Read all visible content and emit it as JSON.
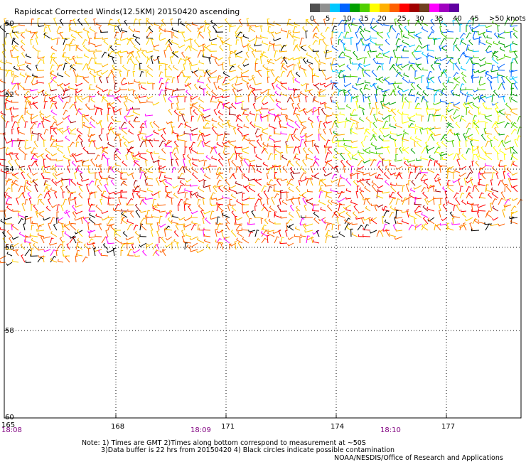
{
  "title": "Rapidscat Corrected Winds(12.5KM) 20150420 ascending",
  "legend": {
    "labels": [
      "0",
      "5",
      "10",
      "15",
      "20",
      "25",
      "30",
      "35",
      "40",
      "45",
      ">50 knots"
    ],
    "colors": [
      "#505050",
      "#909090",
      "#00c8ff",
      "#0064ff",
      "#00a000",
      "#50d000",
      "#ffff00",
      "#ffb000",
      "#ff6000",
      "#ff0000",
      "#a00000",
      "#704020",
      "#ff00ff",
      "#a000c0",
      "#6000a0"
    ]
  },
  "lat_labels": [
    "50",
    "52",
    "54",
    "56",
    "58",
    "60"
  ],
  "lon_labels": [
    "165",
    "168",
    "171",
    "174",
    "177"
  ],
  "time_labels": [
    "18:08",
    "18:09",
    "18:10"
  ],
  "notes": {
    "line1": "Note: 1) Times are GMT 2)Times along bottom correspond to measurement at ~50S",
    "line2": "3)Data buffer is 22 hrs from 20150420 4) Black circles indicate possible contamination",
    "line3": "NOAA/NESDIS/Office of Research and Applications"
  }
}
